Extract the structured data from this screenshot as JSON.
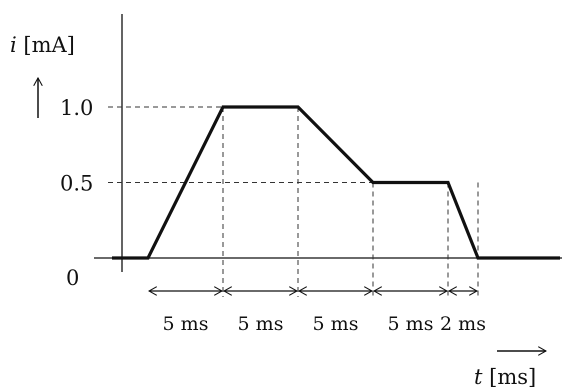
{
  "chart_data": {
    "type": "line",
    "title": "",
    "xlabel": "t [ms]",
    "ylabel": "i [mA]",
    "x": [
      0,
      5,
      10,
      15,
      20,
      22
    ],
    "series": [
      {
        "values": [
          0,
          1.0,
          1.0,
          0.5,
          0.5,
          0
        ]
      }
    ],
    "yticks": [
      {
        "value": 0,
        "label": "0"
      },
      {
        "value": 0.5,
        "label": "0.5"
      },
      {
        "value": 1.0,
        "label": "1.0"
      }
    ],
    "intervals": [
      {
        "from": 0,
        "to": 5,
        "label": "5 ms"
      },
      {
        "from": 5,
        "to": 10,
        "label": "5 ms"
      },
      {
        "from": 10,
        "to": 15,
        "label": "5 ms"
      },
      {
        "from": 15,
        "to": 20,
        "label": "5 ms"
      },
      {
        "from": 20,
        "to": 22,
        "label": "2 ms"
      }
    ],
    "ylim": [
      0,
      1.0
    ],
    "grid": false,
    "legend": "none",
    "colors": {
      "line": "#111111",
      "guide": "#333333",
      "axis": "#111111"
    }
  }
}
